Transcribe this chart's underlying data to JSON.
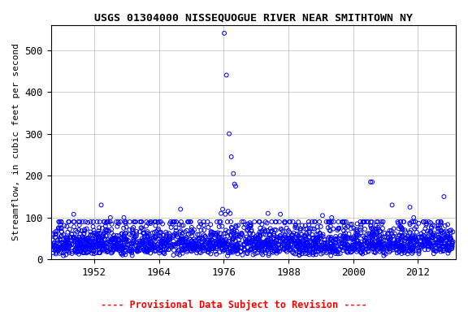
{
  "title": "USGS 01304000 NISSEQUOGUE RIVER NEAR SMITHTOWN NY",
  "ylabel": "Streamflow, in cubic feet per second",
  "footer": "---- Provisional Data Subject to Revision ----",
  "footer_color": "#ff0000",
  "marker_color": "#0000ff",
  "marker": "o",
  "marker_size": 3.5,
  "marker_facecolor": "none",
  "marker_linewidth": 0.7,
  "xlim": [
    1944,
    2019
  ],
  "ylim": [
    0,
    560
  ],
  "xticks": [
    1952,
    1964,
    1976,
    1988,
    2000,
    2012
  ],
  "yticks": [
    0,
    100,
    200,
    300,
    400,
    500
  ],
  "grid_color": "#bbbbbb",
  "grid_linewidth": 0.5,
  "background_color": "#ffffff",
  "title_fontsize": 9.5,
  "label_fontsize": 8,
  "tick_fontsize": 9,
  "seed": 42,
  "n_points": 2200,
  "year_start": 1944.0,
  "year_end": 2018.5,
  "base_flow_mean": 3.7,
  "base_flow_sigma": 0.5
}
